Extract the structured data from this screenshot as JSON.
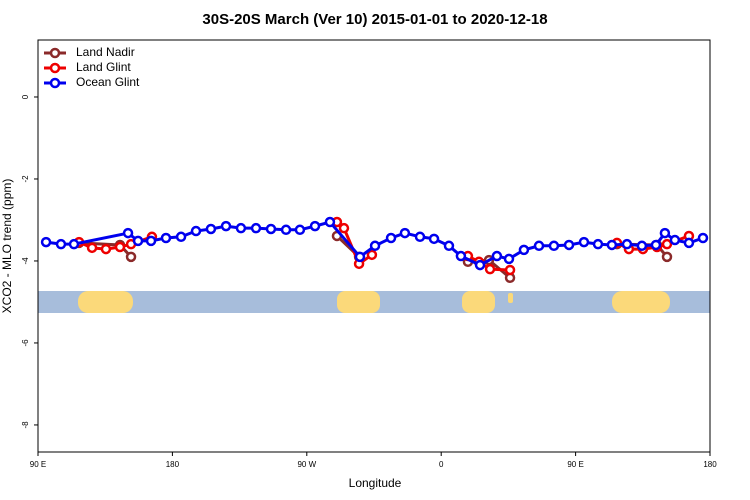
{
  "chart_data": {
    "type": "line",
    "title": "30S-20S March (Ver 10)   2015-01-01 to 2020-12-18",
    "xlabel": "Longitude",
    "ylabel": "XCO2 - MLO trend (ppm)",
    "xlim": [
      90,
      540
    ],
    "ylim": [
      -8.66,
      1.39
    ],
    "xticks": [
      {
        "value": 90,
        "label": "90 E"
      },
      {
        "value": 180,
        "label": "180"
      },
      {
        "value": 270,
        "label": "90 W"
      },
      {
        "value": 360,
        "label": "0"
      },
      {
        "value": 450,
        "label": "90 E"
      },
      {
        "value": 540,
        "label": "180"
      }
    ],
    "yticks": [
      0,
      -2,
      -4,
      -6,
      -8
    ],
    "grid": false,
    "legend": "top-left",
    "series": [
      {
        "name": "Land Nadir",
        "color": "#8b2a2a",
        "x": [
          117.5,
          144.9,
          152.3,
          null,
          290.2,
          305.0,
          null,
          377.9,
          392.0,
          406.1,
          null,
          477.7,
          504.5,
          511.2
        ],
        "values": [
          -3.56,
          -3.61,
          -3.9,
          null,
          -3.39,
          -3.9,
          null,
          -4.02,
          -3.98,
          -4.41,
          null,
          -3.59,
          -3.61,
          -3.9
        ]
      },
      {
        "name": "Land Glint",
        "color": "#ee0000",
        "x": [
          117.5,
          126.2,
          135.5,
          144.9,
          152.3,
          166.3,
          null,
          290.2,
          294.9,
          305.0,
          313.6,
          null,
          377.9,
          385.3,
          392.7,
          406.1,
          null,
          477.7,
          485.7,
          495.1,
          504.5,
          511.2,
          525.9
        ],
        "values": [
          -3.54,
          -3.68,
          -3.71,
          -3.66,
          -3.59,
          -3.41,
          null,
          -3.05,
          -3.2,
          -4.07,
          -3.85,
          null,
          -3.88,
          -4.02,
          -4.2,
          -4.22,
          null,
          -3.56,
          -3.71,
          -3.71,
          -3.66,
          -3.59,
          -3.39
        ]
      },
      {
        "name": "Ocean Glint",
        "color": "#0000ee",
        "x": [
          95.4,
          105.4,
          114.1,
          150.3,
          157.0,
          165.7,
          175.7,
          185.8,
          195.8,
          205.8,
          215.9,
          225.9,
          236.0,
          246.0,
          256.1,
          265.4,
          275.5,
          285.5,
          305.6,
          315.7,
          326.4,
          335.7,
          345.8,
          355.2,
          365.2,
          373.2,
          386.0,
          397.3,
          405.4,
          415.4,
          425.5,
          435.5,
          445.6,
          455.6,
          465.0,
          474.3,
          484.4,
          494.4,
          503.8,
          509.8,
          516.5,
          525.9,
          535.3
        ],
        "values": [
          -3.54,
          -3.59,
          -3.59,
          -3.32,
          -3.51,
          -3.51,
          -3.44,
          -3.41,
          -3.27,
          -3.22,
          -3.15,
          -3.2,
          -3.2,
          -3.22,
          -3.24,
          -3.24,
          -3.15,
          -3.05,
          -3.9,
          -3.63,
          -3.44,
          -3.32,
          -3.41,
          -3.46,
          -3.63,
          -3.88,
          -4.1,
          -3.88,
          -3.95,
          -3.73,
          -3.63,
          -3.63,
          -3.61,
          -3.54,
          -3.59,
          -3.61,
          -3.59,
          -3.63,
          -3.61,
          -3.32,
          -3.49,
          -3.56,
          -3.44
        ]
      }
    ]
  }
}
